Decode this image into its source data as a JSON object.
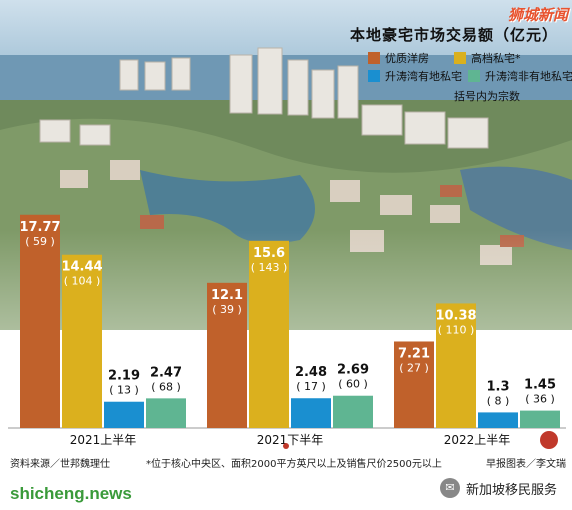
{
  "watermark": "狮城新闻",
  "bottom_watermark": "shicheng.news",
  "wechat_name": "新加坡移民服务",
  "chart_data": {
    "type": "bar",
    "title": "本地豪宅市场交易额（亿元）",
    "note": "括号内为宗数",
    "categories": [
      "2021上半年",
      "2021下半年",
      "2022上半年"
    ],
    "ylim": [
      0,
      20
    ],
    "series": [
      {
        "name": "优质洋房",
        "color": "#c0612b",
        "values": [
          17.77,
          12.1,
          7.21
        ],
        "labels": [
          "17.77",
          "12.1",
          "7.21"
        ],
        "counts": [
          "59",
          "39",
          "27"
        ]
      },
      {
        "name": "高档私宅*",
        "color": "#dbb01e",
        "values": [
          14.44,
          15.6,
          10.38
        ],
        "labels": [
          "14.44",
          "15.6",
          "10.38"
        ],
        "counts": [
          "104",
          "143",
          "110"
        ]
      },
      {
        "name": "升涛湾有地私宅",
        "color": "#1a8fd0",
        "values": [
          2.19,
          2.48,
          1.3
        ],
        "labels": [
          "2.19",
          "2.48",
          "1.3"
        ],
        "counts": [
          "13",
          "17",
          "8"
        ]
      },
      {
        "name": "升涛湾非有地私宅",
        "color": "#5fb592",
        "values": [
          2.47,
          2.69,
          1.45
        ],
        "labels": [
          "2.47",
          "2.69",
          "1.45"
        ],
        "counts": [
          "68",
          "60",
          "36"
        ]
      }
    ]
  },
  "footer": {
    "source": "资料来源／世邦魏理仕",
    "footnote": "*位于核心中央区、面积2000平方英尺以上及销售尺价2500元以上",
    "credit": "早报图表／李文瑞"
  }
}
